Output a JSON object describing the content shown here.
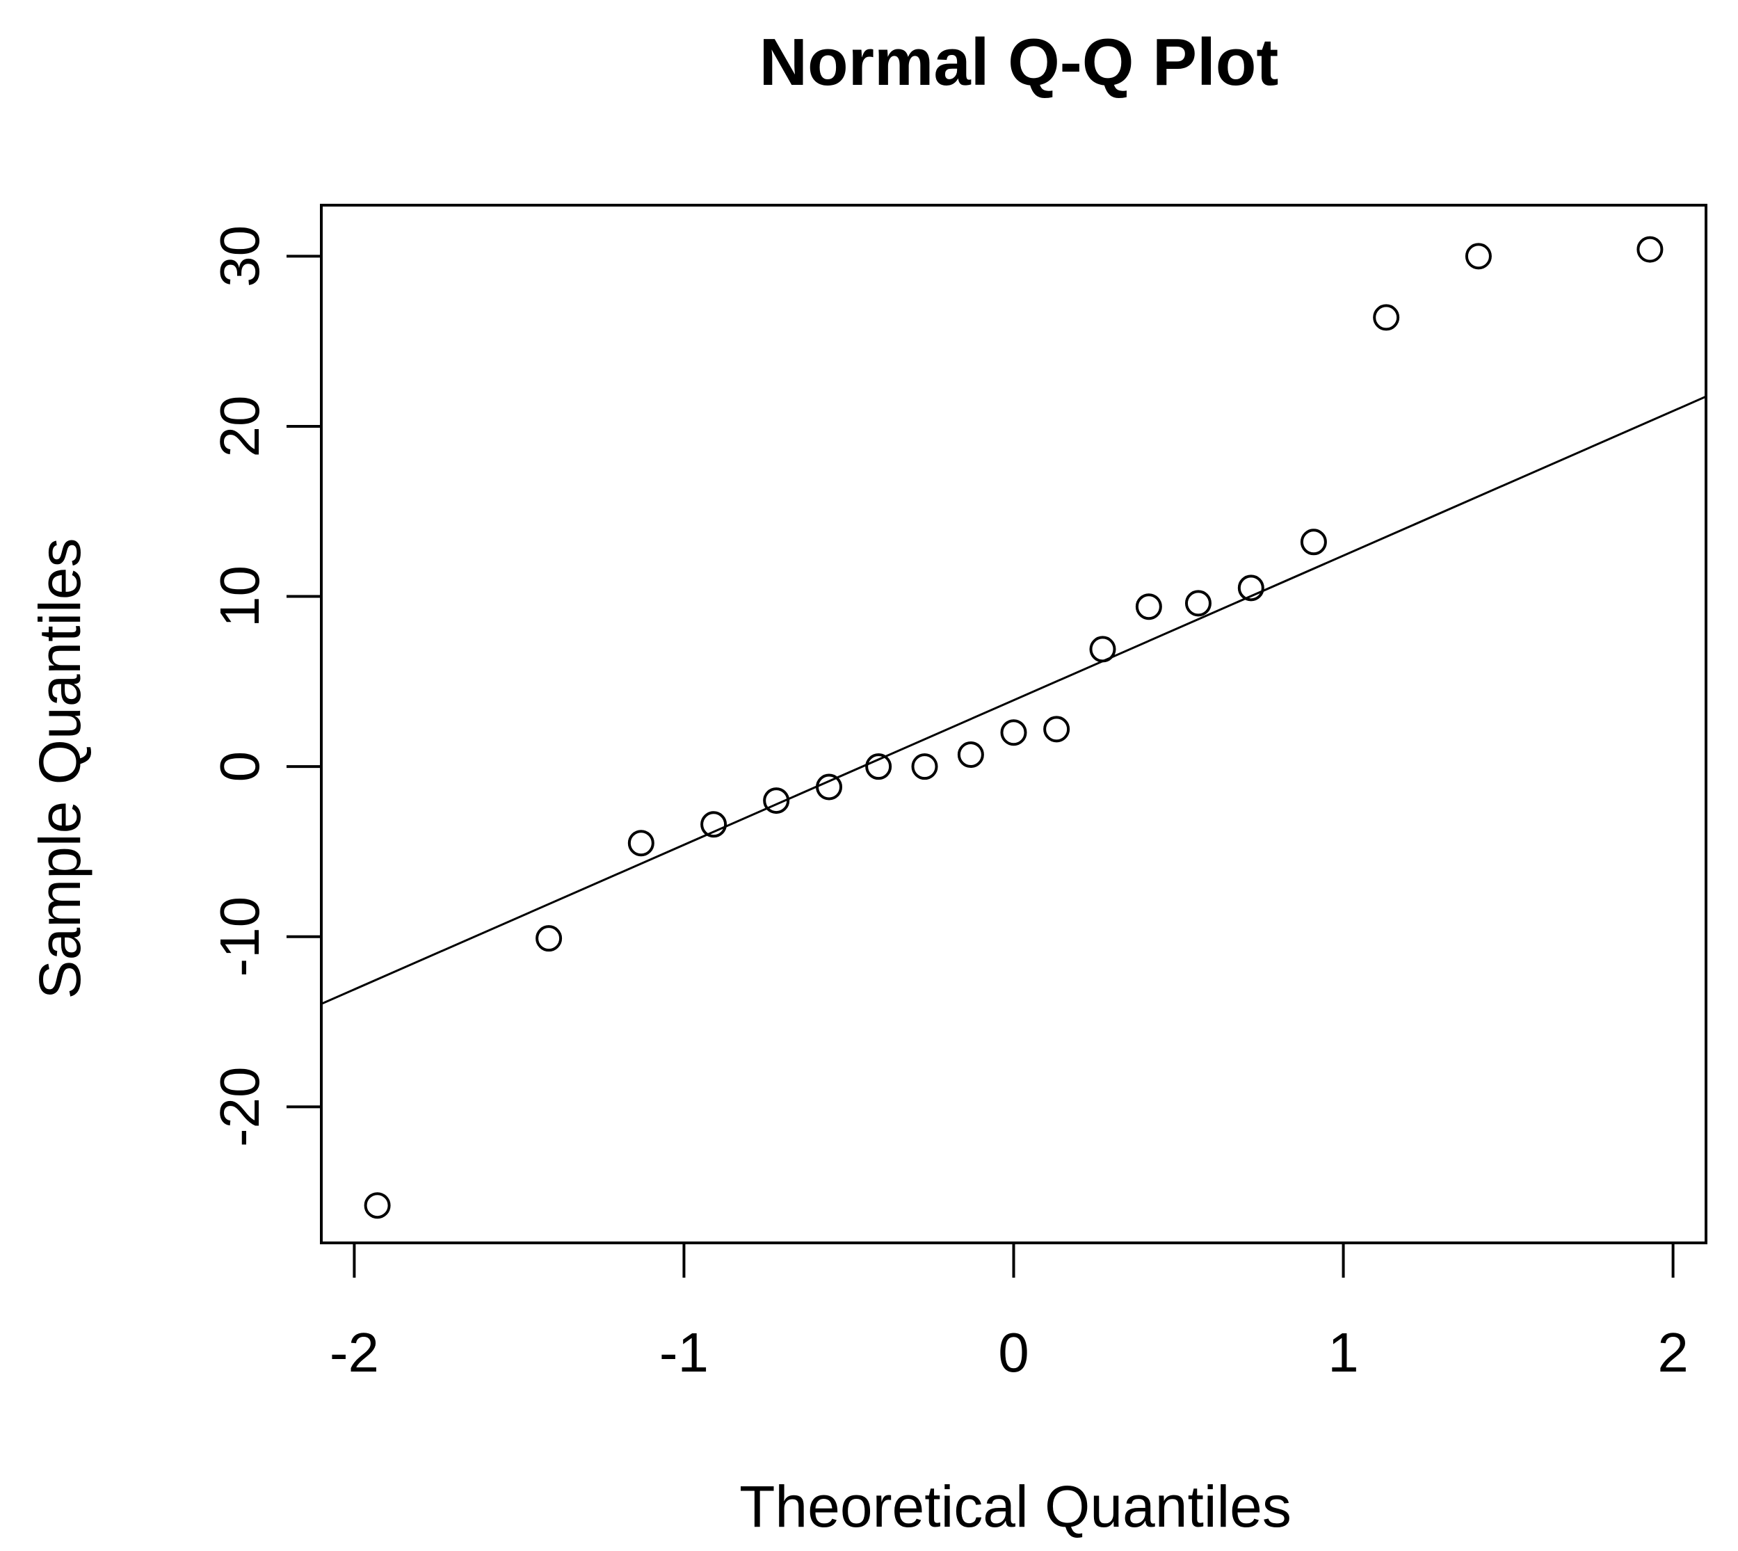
{
  "chart_data": {
    "type": "scatter",
    "title": "Normal Q-Q Plot",
    "xlabel": "Theoretical Quantiles",
    "ylabel": "Sample Quantiles",
    "xlim": [
      -2.1,
      2.1
    ],
    "ylim": [
      -28,
      33
    ],
    "x_ticks": [
      -2,
      -1,
      0,
      1,
      2
    ],
    "x_tick_labels": [
      "-2",
      "-1",
      "0",
      "1",
      "2"
    ],
    "y_ticks": [
      -20,
      -10,
      0,
      10,
      20,
      30
    ],
    "y_tick_labels": [
      "-20",
      "-10",
      "0",
      "10",
      "20",
      "30"
    ],
    "grid": false,
    "legend": "none",
    "series": [
      {
        "points": [
          {
            "x": -1.93,
            "y": -25.8
          },
          {
            "x": -1.41,
            "y": -10.1
          },
          {
            "x": -1.13,
            "y": -4.5
          },
          {
            "x": -0.91,
            "y": -3.4
          },
          {
            "x": -0.72,
            "y": -2.0
          },
          {
            "x": -0.56,
            "y": -1.2
          },
          {
            "x": -0.41,
            "y": 0.0
          },
          {
            "x": -0.27,
            "y": 0.0
          },
          {
            "x": -0.13,
            "y": 0.7
          },
          {
            "x": 0.0,
            "y": 2.0
          },
          {
            "x": 0.13,
            "y": 2.2
          },
          {
            "x": 0.27,
            "y": 6.9
          },
          {
            "x": 0.41,
            "y": 9.4
          },
          {
            "x": 0.56,
            "y": 9.6
          },
          {
            "x": 0.72,
            "y": 10.5
          },
          {
            "x": 0.91,
            "y": 13.2
          },
          {
            "x": 1.13,
            "y": 26.4
          },
          {
            "x": 1.41,
            "y": 30.0
          },
          {
            "x": 1.93,
            "y": 30.4
          }
        ]
      }
    ],
    "reference_line": {
      "intercept": 3.9,
      "slope": 8.5
    },
    "colors": {
      "points": "#000000",
      "line": "#000000",
      "frame": "#000000"
    }
  }
}
